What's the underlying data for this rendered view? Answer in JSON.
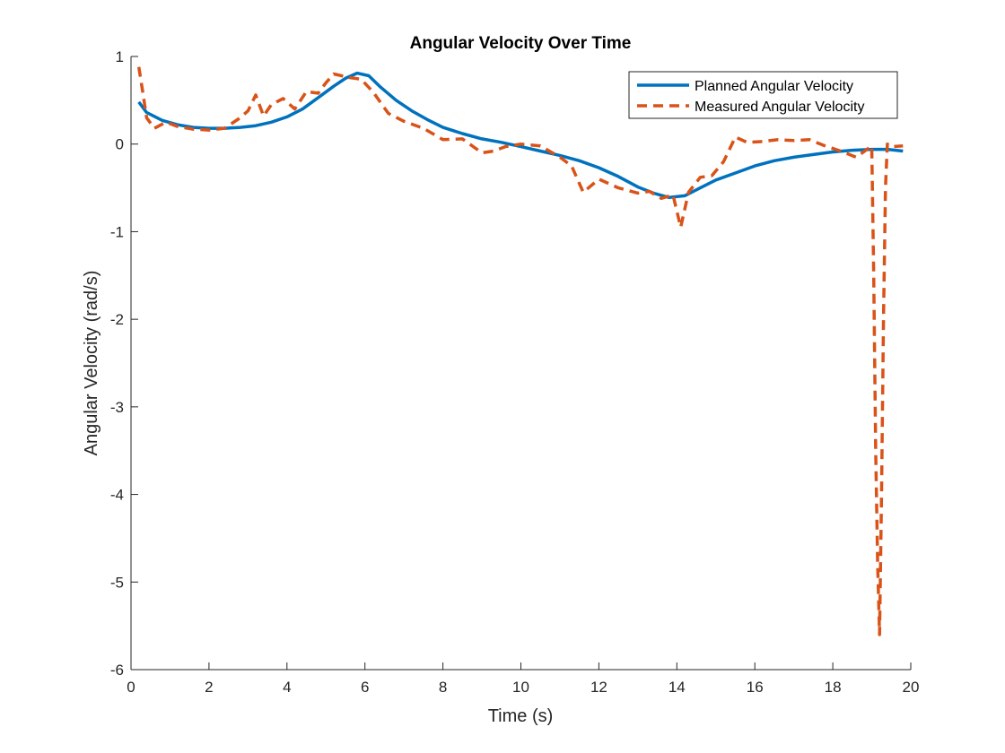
{
  "chart_data": {
    "type": "line",
    "title": "Angular Velocity Over Time",
    "xlabel": "Time (s)",
    "ylabel": "Angular Velocity (rad/s)",
    "xlim": [
      0,
      20
    ],
    "ylim": [
      -6,
      1
    ],
    "xticks": [
      0,
      2,
      4,
      6,
      8,
      10,
      12,
      14,
      16,
      18,
      20
    ],
    "yticks": [
      1,
      0,
      -1,
      -2,
      -3,
      -4,
      -5,
      -6
    ],
    "grid": false,
    "legend_position": "top-right",
    "series": [
      {
        "name": "Planned Angular Velocity",
        "color": "#0072BD",
        "style": "solid",
        "x": [
          0.2,
          0.4,
          0.8,
          1.2,
          1.6,
          2.0,
          2.4,
          2.8,
          3.2,
          3.6,
          4.0,
          4.4,
          4.8,
          5.2,
          5.5,
          5.8,
          6.1,
          6.4,
          6.8,
          7.2,
          7.6,
          8.0,
          8.5,
          9.0,
          9.5,
          10.0,
          10.5,
          11.0,
          11.5,
          12.0,
          12.5,
          13.0,
          13.4,
          13.8,
          14.2,
          14.6,
          15.0,
          15.5,
          16.0,
          16.5,
          17.0,
          17.5,
          18.0,
          18.5,
          19.0,
          19.4,
          19.8
        ],
        "y": [
          0.48,
          0.36,
          0.27,
          0.22,
          0.19,
          0.18,
          0.18,
          0.19,
          0.21,
          0.25,
          0.31,
          0.4,
          0.53,
          0.66,
          0.75,
          0.81,
          0.78,
          0.65,
          0.5,
          0.38,
          0.28,
          0.19,
          0.12,
          0.06,
          0.02,
          -0.03,
          -0.08,
          -0.13,
          -0.19,
          -0.27,
          -0.37,
          -0.49,
          -0.56,
          -0.61,
          -0.59,
          -0.5,
          -0.41,
          -0.33,
          -0.25,
          -0.19,
          -0.15,
          -0.12,
          -0.09,
          -0.07,
          -0.06,
          -0.06,
          -0.08
        ]
      },
      {
        "name": "Measured Angular Velocity",
        "color": "#D95319",
        "style": "dashed",
        "x": [
          0.2,
          0.3,
          0.4,
          0.6,
          0.9,
          1.2,
          1.6,
          2.0,
          2.4,
          2.8,
          3.0,
          3.2,
          3.4,
          3.6,
          3.9,
          4.2,
          4.5,
          4.8,
          5.0,
          5.2,
          5.6,
          5.9,
          6.2,
          6.6,
          7.0,
          7.5,
          8.0,
          8.5,
          9.0,
          9.3,
          9.6,
          10.0,
          10.5,
          11.0,
          11.3,
          11.6,
          12.0,
          12.5,
          13.0,
          13.3,
          13.6,
          13.9,
          14.1,
          14.3,
          14.6,
          14.9,
          15.2,
          15.5,
          15.8,
          16.2,
          16.6,
          17.0,
          17.4,
          17.8,
          18.2,
          18.6,
          19.0,
          19.05,
          19.1,
          19.15,
          19.2,
          19.25,
          19.3,
          19.35,
          19.4,
          19.5,
          19.8
        ],
        "y": [
          0.88,
          0.6,
          0.3,
          0.18,
          0.25,
          0.2,
          0.17,
          0.16,
          0.18,
          0.3,
          0.38,
          0.56,
          0.32,
          0.45,
          0.52,
          0.4,
          0.6,
          0.58,
          0.7,
          0.8,
          0.76,
          0.74,
          0.6,
          0.35,
          0.26,
          0.18,
          0.05,
          0.06,
          -0.1,
          -0.08,
          -0.03,
          0.0,
          -0.02,
          -0.15,
          -0.25,
          -0.55,
          -0.4,
          -0.5,
          -0.56,
          -0.54,
          -0.62,
          -0.58,
          -0.95,
          -0.55,
          -0.38,
          -0.36,
          -0.2,
          0.08,
          0.02,
          0.03,
          0.05,
          0.04,
          0.05,
          -0.02,
          -0.08,
          -0.15,
          -0.02,
          -1.5,
          -3.5,
          -4.8,
          -5.6,
          -4.0,
          -2.0,
          -0.5,
          0.0,
          -0.03,
          -0.02
        ]
      }
    ]
  }
}
